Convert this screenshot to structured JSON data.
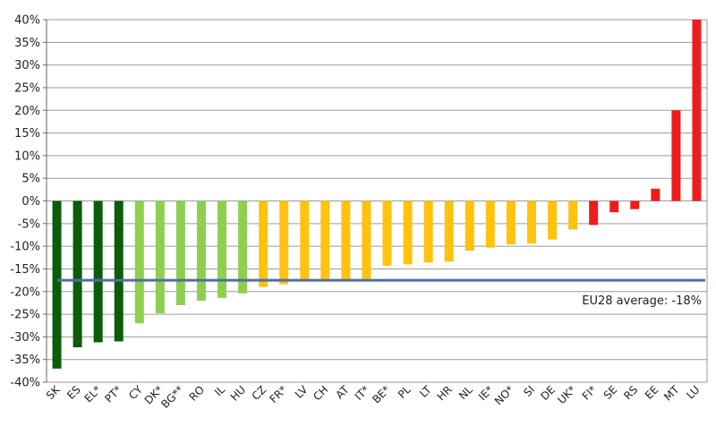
{
  "chart_data": {
    "type": "bar",
    "categories": [
      "SK",
      "ES",
      "EL*",
      "PT*",
      "CY",
      "DK*",
      "BG**",
      "RO",
      "IL",
      "HU",
      "CZ",
      "FR*",
      "LV",
      "CH",
      "AT",
      "IT*",
      "BE*",
      "PL",
      "LT",
      "HR",
      "NL",
      "IE*",
      "NO*",
      "SI",
      "DE",
      "UK*",
      "FI*",
      "SE",
      "RS",
      "EE",
      "MT",
      "LU"
    ],
    "values": [
      -37,
      -32.3,
      -31.2,
      -31,
      -27,
      -24.8,
      -23,
      -22,
      -21.4,
      -20.4,
      -19,
      -18.4,
      -17.2,
      -17.2,
      -17.2,
      -17.2,
      -14.3,
      -14,
      -13.6,
      -13.4,
      -11,
      -10.3,
      -9.6,
      -9.4,
      -8.5,
      -6.3,
      -5.3,
      -2.5,
      -1.8,
      2.7,
      20,
      40
    ],
    "colors": [
      "#0b5c0b",
      "#0b5c0b",
      "#0b5c0b",
      "#0b5c0b",
      "#8fcf50",
      "#8fcf50",
      "#8fcf50",
      "#8fcf50",
      "#8fcf50",
      "#8fcf50",
      "#ffc20e",
      "#ffc20e",
      "#ffc20e",
      "#ffc20e",
      "#ffc20e",
      "#ffc20e",
      "#ffc20e",
      "#ffc20e",
      "#ffc20e",
      "#ffc20e",
      "#ffc20e",
      "#ffc20e",
      "#ffc20e",
      "#ffc20e",
      "#ffc20e",
      "#ffc20e",
      "#ee1c1c",
      "#ee1c1c",
      "#ee1c1c",
      "#ee1c1c",
      "#ee1c1c",
      "#ee1c1c"
    ],
    "ylim": [
      -40,
      40
    ],
    "ytick_step": 5,
    "ytick_labels": [
      "40%",
      "35%",
      "30%",
      "25%",
      "20%",
      "15%",
      "10%",
      "5%",
      "0%",
      "-5%",
      "-10%",
      "-15%",
      "-20%",
      "-25%",
      "-30%",
      "-35%",
      "-40%"
    ],
    "grid": true,
    "reference_line": {
      "value": -17.5,
      "label": "EU28 average:  -18%",
      "color": "#4f6f9f"
    }
  }
}
